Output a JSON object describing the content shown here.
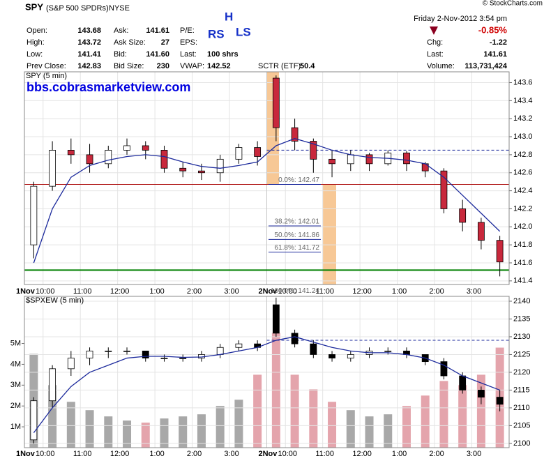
{
  "header": {
    "symbol": "SPY",
    "name": "(S&P 500 SPDRs)",
    "exchange": "NYSE",
    "timestamp": "Friday  2-Nov-2012  3:54 pm",
    "copyright": "© StockCharts.com",
    "change_pct": "-0.85%",
    "stats": [
      {
        "label": "Open:",
        "value": "143.68"
      },
      {
        "label": "High:",
        "value": "143.72"
      },
      {
        "label": "Low:",
        "value": "141.41"
      },
      {
        "label": "Prev Close:",
        "value": "142.83"
      },
      {
        "label": "Ask:",
        "value": "141.61"
      },
      {
        "label": "Ask Size:",
        "value": "27"
      },
      {
        "label": "Bid:",
        "value": "141.60"
      },
      {
        "label": "Bid Size:",
        "value": "230"
      },
      {
        "label": "P/E:"
      },
      {
        "label": "EPS:"
      },
      {
        "label": "Last:",
        "value": "100 shrs"
      },
      {
        "label": "VWAP:",
        "value": "142.52"
      }
    ],
    "sctr": {
      "label": "SCTR (ETF):",
      "value": "50.4"
    },
    "quote": [
      {
        "label": "Chg:",
        "value": "-1.22"
      },
      {
        "label": "Last:",
        "value": "141.61"
      },
      {
        "label": "Volume:",
        "value": "113,731,424"
      }
    ],
    "annotations": [
      "RS",
      "H",
      "LS"
    ]
  },
  "chart_data": [
    {
      "type": "candlestick",
      "title": "SPY (5 min)",
      "annotation": "bbs.cobrasmarketview.com",
      "open": [
        141.8,
        142.45,
        142.85,
        142.8,
        142.7,
        142.85,
        142.9,
        142.85,
        142.65,
        142.62,
        142.6,
        142.75,
        142.88,
        143.65,
        143.1,
        142.95,
        142.75,
        142.7,
        142.8,
        142.7,
        142.82,
        142.7,
        142.62,
        142.2,
        142.05,
        141.85
      ],
      "high": [
        142.5,
        142.95,
        142.98,
        142.92,
        142.9,
        142.98,
        142.95,
        142.9,
        142.72,
        142.7,
        142.8,
        142.92,
        142.95,
        143.68,
        143.2,
        142.98,
        142.85,
        142.85,
        142.82,
        142.85,
        142.84,
        142.72,
        142.65,
        142.3,
        142.1,
        141.9
      ],
      "low": [
        141.65,
        142.4,
        142.7,
        142.6,
        142.65,
        142.8,
        142.75,
        142.6,
        142.55,
        142.52,
        142.5,
        142.7,
        142.68,
        142.95,
        142.85,
        142.6,
        142.55,
        142.62,
        142.62,
        142.68,
        142.62,
        142.55,
        142.15,
        141.95,
        141.75,
        141.45
      ],
      "close": [
        142.45,
        142.85,
        142.8,
        142.7,
        142.85,
        142.9,
        142.85,
        142.65,
        142.62,
        142.6,
        142.75,
        142.88,
        142.78,
        143.1,
        142.95,
        142.75,
        142.7,
        142.8,
        142.7,
        142.82,
        142.7,
        142.62,
        142.2,
        142.05,
        141.85,
        141.61
      ],
      "ma": [
        141.6,
        142.2,
        142.55,
        142.68,
        142.74,
        142.78,
        142.8,
        142.78,
        142.72,
        142.67,
        142.65,
        142.68,
        142.72,
        142.9,
        142.98,
        142.92,
        142.85,
        142.8,
        142.77,
        142.76,
        142.74,
        142.7,
        142.55,
        142.35,
        142.15,
        141.95
      ],
      "up_color": "#ffffff",
      "down_color": "#c8283c",
      "edge_color": "#000000",
      "ma_color": "#1c2a9c",
      "hlines": [
        {
          "value": 142.47,
          "color": "#b01818",
          "style": "solid"
        },
        {
          "value": 141.52,
          "color": "#008000",
          "style": "thick"
        },
        {
          "value": 142.85,
          "color": "#1c2a9c",
          "style": "dashed"
        }
      ],
      "fib_levels": [
        {
          "value": 142.47,
          "label": "0.0%: 142.47"
        },
        {
          "value": 142.01,
          "label": "38.2%: 142.01"
        },
        {
          "value": 141.86,
          "label": "50.0%: 141.86"
        },
        {
          "value": 141.72,
          "label": "61.8%: 141.72"
        },
        {
          "value": 141.24,
          "label": "100.0%: 141.24"
        }
      ],
      "xlim": [
        0,
        26
      ],
      "ylim": [
        141.36,
        143.72
      ],
      "yticks": [
        141.4,
        141.6,
        141.8,
        {
          "value": 142,
          "label": "142.0"
        },
        142.2,
        142.4,
        142.6,
        142.8,
        {
          "value": 143,
          "label": "143.0"
        },
        143.2,
        143.4,
        143.6
      ],
      "xticks": [
        {
          "value": 1,
          "label": "10:00"
        },
        {
          "value": 3,
          "label": "11:00"
        },
        {
          "value": 5,
          "label": "12:00"
        },
        {
          "value": 7,
          "label": "1:00"
        },
        {
          "value": 9,
          "label": "2:00"
        },
        {
          "value": 11,
          "label": "3:00"
        },
        {
          "value": 14,
          "label": "10:00"
        },
        {
          "value": 16,
          "label": "11:00"
        },
        {
          "value": 18,
          "label": "12:00"
        },
        {
          "value": 20,
          "label": "1:00"
        },
        {
          "value": 22,
          "label": "2:00"
        },
        {
          "value": 24,
          "label": "3:00"
        }
      ],
      "day_labels": [
        {
          "value": 0,
          "label": "1Nov"
        },
        {
          "value": 13,
          "label": "2Nov"
        }
      ],
      "grid": true
    },
    {
      "type": "candlestick",
      "title": "$SPXEW (5 min)",
      "open": [
        2101,
        2112,
        2121,
        2124,
        2126,
        2126,
        2126,
        2124,
        2124,
        2124,
        2125,
        2127,
        2128,
        2139,
        2131,
        2128,
        2125,
        2124,
        2125,
        2126,
        2126,
        2125,
        2123,
        2119,
        2115,
        2113
      ],
      "high": [
        2113,
        2122,
        2126,
        2127,
        2127,
        2127,
        2126,
        2125,
        2125,
        2126,
        2128,
        2129,
        2129,
        2141,
        2132,
        2129,
        2126,
        2126,
        2127,
        2127,
        2127,
        2125,
        2124,
        2120,
        2116,
        2115
      ],
      "low": [
        2100,
        2110,
        2119,
        2122,
        2124,
        2125,
        2123,
        2123,
        2123,
        2123,
        2124,
        2126,
        2126,
        2130,
        2127,
        2124,
        2123,
        2123,
        2124,
        2125,
        2124,
        2122,
        2118,
        2114,
        2111,
        2109
      ],
      "close": [
        2112,
        2121,
        2124,
        2126,
        2126,
        2126,
        2124,
        2124,
        2124,
        2125,
        2127,
        2128,
        2127,
        2131,
        2128,
        2125,
        2124,
        2125,
        2126,
        2126,
        2125,
        2123,
        2119,
        2115,
        2113,
        2111
      ],
      "ma": [
        2103,
        2110,
        2116,
        2120,
        2122,
        2124,
        2124.5,
        2124.5,
        2124.2,
        2124.3,
        2125,
        2126,
        2127,
        2129,
        2130,
        2128.5,
        2127,
        2126,
        2125.5,
        2125.5,
        2125,
        2124,
        2122,
        2119,
        2117,
        2115
      ],
      "up_color": "#ffffff",
      "down_color": "#000000",
      "edge_color": "#000000",
      "ma_color": "#1c2a9c",
      "hlines": [
        {
          "value": 2129,
          "color": "#1c2a9c",
          "style": "dashed"
        }
      ],
      "volume": [
        4500000,
        3000000,
        2200000,
        1800000,
        1500000,
        1300000,
        1200000,
        1400000,
        1500000,
        1600000,
        2000000,
        2300000,
        3500000,
        5500000,
        3500000,
        2800000,
        2200000,
        1800000,
        1500000,
        1600000,
        2000000,
        2500000,
        3200000,
        3000000,
        3500000,
        4800000
      ],
      "volume_up_color": "#a8a8a8",
      "volume_down_color": "#e4a4ac",
      "xlim": [
        0,
        26
      ],
      "ylim": [
        2098.8,
        2141.37
      ],
      "yticks": [
        2100,
        2105,
        2110,
        2115,
        2120,
        2125,
        2130,
        2135,
        2140
      ],
      "y2lim": [
        0,
        7260000
      ],
      "y2ticks": [
        {
          "value": 1000000,
          "label": "1M"
        },
        {
          "value": 2000000,
          "label": "2M"
        },
        {
          "value": 3000000,
          "label": "3M"
        },
        {
          "value": 4000000,
          "label": "4M"
        },
        {
          "value": 5000000,
          "label": "5M"
        }
      ],
      "xticks": [
        {
          "value": 1,
          "label": "10:00"
        },
        {
          "value": 3,
          "label": "11:00"
        },
        {
          "value": 5,
          "label": "12:00"
        },
        {
          "value": 7,
          "label": "1:00"
        },
        {
          "value": 9,
          "label": "2:00"
        },
        {
          "value": 11,
          "label": "3:00"
        },
        {
          "value": 14,
          "label": "10:00"
        },
        {
          "value": 16,
          "label": "11:00"
        },
        {
          "value": 18,
          "label": "12:00"
        },
        {
          "value": 20,
          "label": "1:00"
        },
        {
          "value": 22,
          "label": "2:00"
        },
        {
          "value": 24,
          "label": "3:00"
        }
      ],
      "day_labels": [
        {
          "value": 0,
          "label": "1Nov"
        },
        {
          "value": 13,
          "label": "2Nov"
        }
      ],
      "grid": true
    }
  ]
}
